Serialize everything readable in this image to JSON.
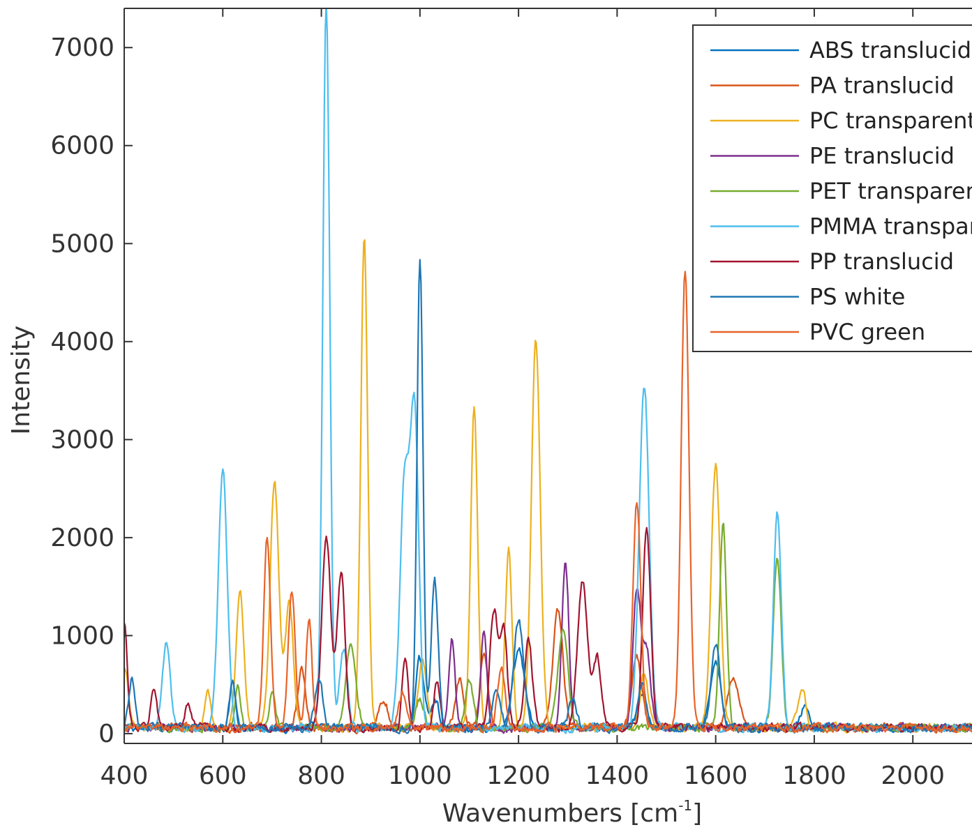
{
  "chart_data": {
    "type": "line",
    "title": "",
    "xlabel": "Wavenumbers [cm",
    "xlabel_sup": "-1",
    "xlabel_suffix": "]",
    "ylabel": "Intensity",
    "xlim": [
      400,
      2120
    ],
    "ylim": [
      -100,
      7400
    ],
    "xticks": [
      400,
      600,
      800,
      1000,
      1200,
      1400,
      1600,
      1800,
      2000
    ],
    "xtick_labels": [
      "400",
      "600",
      "800",
      "1000",
      "1200",
      "1400",
      "1600",
      "1800",
      "2000"
    ],
    "yticks": [
      0,
      1000,
      2000,
      3000,
      4000,
      5000,
      6000,
      7000
    ],
    "ytick_labels": [
      "0",
      "1000",
      "2000",
      "3000",
      "4000",
      "5000",
      "6000",
      "7000"
    ],
    "grid": false,
    "legend_position": "top-right",
    "series": [
      {
        "name": "ABS translucid",
        "color": "#0072BD",
        "peaks": [
          [
            620,
            500,
            6
          ],
          [
            1000,
            700,
            8
          ],
          [
            1030,
            300,
            8
          ],
          [
            1200,
            800,
            12
          ],
          [
            1450,
            350,
            10
          ],
          [
            1600,
            700,
            10
          ],
          [
            1780,
            200,
            8
          ]
        ]
      },
      {
        "name": "PA translucid",
        "color": "#D95319",
        "peaks": [
          [
            760,
            600,
            8
          ],
          [
            925,
            300,
            10
          ],
          [
            1080,
            500,
            8
          ],
          [
            1130,
            800,
            8
          ],
          [
            1280,
            1200,
            10
          ],
          [
            1440,
            700,
            10
          ],
          [
            1635,
            500,
            12
          ]
        ]
      },
      {
        "name": "PC transparent",
        "color": "#EDB120",
        "peaks": [
          [
            400,
            600,
            8
          ],
          [
            570,
            350,
            6
          ],
          [
            635,
            1400,
            8
          ],
          [
            705,
            2500,
            9
          ],
          [
            735,
            1300,
            8
          ],
          [
            887,
            5000,
            7
          ],
          [
            1005,
            700,
            8
          ],
          [
            1110,
            3300,
            7
          ],
          [
            1180,
            1800,
            7
          ],
          [
            1235,
            3950,
            9
          ],
          [
            1455,
            550,
            8
          ],
          [
            1600,
            2700,
            9
          ],
          [
            1775,
            400,
            8
          ]
        ]
      },
      {
        "name": "PE translucid",
        "color": "#7E2F8E",
        "peaks": [
          [
            1065,
            900,
            6
          ],
          [
            1130,
            1000,
            6
          ],
          [
            1295,
            1700,
            7
          ],
          [
            1440,
            1400,
            8
          ],
          [
            1460,
            800,
            8
          ]
        ]
      },
      {
        "name": "PET transparent",
        "color": "#77AC30",
        "peaks": [
          [
            630,
            400,
            6
          ],
          [
            700,
            350,
            6
          ],
          [
            860,
            850,
            10
          ],
          [
            1000,
            300,
            8
          ],
          [
            1100,
            500,
            8
          ],
          [
            1290,
            1000,
            10
          ],
          [
            1615,
            2100,
            7
          ],
          [
            1725,
            1750,
            8
          ]
        ]
      },
      {
        "name": "PMMA transparent",
        "color": "#4DBEEE",
        "peaks": [
          [
            485,
            850,
            8
          ],
          [
            600,
            2650,
            9
          ],
          [
            810,
            7400,
            7
          ],
          [
            845,
            800,
            8
          ],
          [
            970,
            2600,
            10
          ],
          [
            990,
            3000,
            8
          ],
          [
            1455,
            3500,
            10
          ],
          [
            1725,
            2200,
            8
          ]
        ]
      },
      {
        "name": "PP translucid",
        "color": "#A2142F",
        "peaks": [
          [
            400,
            1100,
            6
          ],
          [
            460,
            400,
            6
          ],
          [
            530,
            250,
            6
          ],
          [
            810,
            1950,
            9
          ],
          [
            840,
            1600,
            8
          ],
          [
            970,
            700,
            6
          ],
          [
            1035,
            500,
            6
          ],
          [
            1150,
            1200,
            8
          ],
          [
            1170,
            1000,
            7
          ],
          [
            1220,
            900,
            8
          ],
          [
            1330,
            1500,
            10
          ],
          [
            1360,
            700,
            8
          ],
          [
            1460,
            2050,
            8
          ]
        ]
      },
      {
        "name": "PS white",
        "color": "#1F77B4",
        "peaks": [
          [
            415,
            500,
            6
          ],
          [
            620,
            450,
            6
          ],
          [
            795,
            500,
            8
          ],
          [
            1000,
            4800,
            6
          ],
          [
            1030,
            1500,
            7
          ],
          [
            1155,
            400,
            8
          ],
          [
            1200,
            1100,
            10
          ],
          [
            1310,
            300,
            8
          ],
          [
            1450,
            450,
            8
          ],
          [
            1600,
            850,
            9
          ]
        ]
      },
      {
        "name": "PVC green",
        "color": "#E8632A",
        "peaks": [
          [
            690,
            1950,
            7
          ],
          [
            740,
            1400,
            7
          ],
          [
            775,
            1100,
            6
          ],
          [
            965,
            350,
            8
          ],
          [
            1165,
            600,
            8
          ],
          [
            1440,
            2300,
            8
          ],
          [
            1538,
            4650,
            8
          ]
        ]
      }
    ]
  },
  "legend": {
    "labels": [
      "ABS translucid",
      "PA translucid",
      "PC transparent",
      "PE translucid",
      "PET transparent",
      "PMMA transparent",
      "PP translucid",
      "PS white",
      "PVC green"
    ]
  }
}
